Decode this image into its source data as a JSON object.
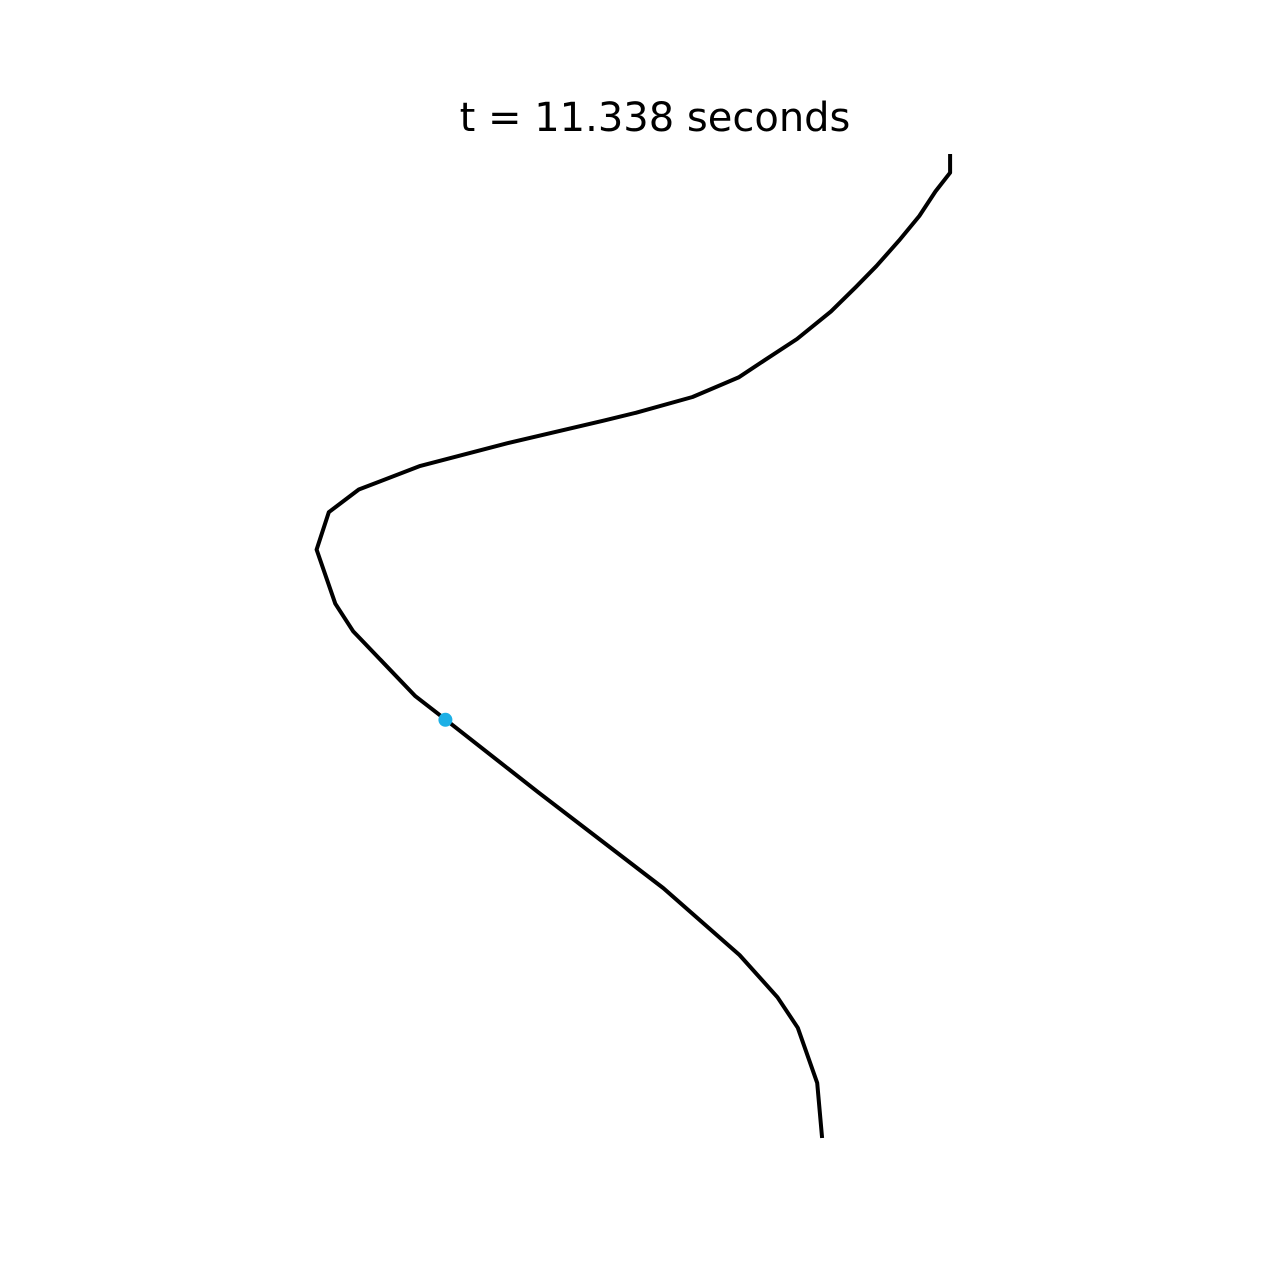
{
  "chart_data": {
    "type": "line",
    "title": "t = 11.338 seconds",
    "grid": false,
    "axes_visible": false,
    "series": [
      {
        "color": "#000000",
        "points": [
          [
            0.805,
            0.0
          ],
          [
            0.805,
            0.019
          ],
          [
            0.787,
            0.038
          ],
          [
            0.767,
            0.063
          ],
          [
            0.742,
            0.088
          ],
          [
            0.714,
            0.114
          ],
          [
            0.689,
            0.135
          ],
          [
            0.658,
            0.16
          ],
          [
            0.616,
            0.188
          ],
          [
            0.577,
            0.209
          ],
          [
            0.544,
            0.227
          ],
          [
            0.487,
            0.247
          ],
          [
            0.417,
            0.263
          ],
          [
            0.377,
            0.271
          ],
          [
            0.258,
            0.294
          ],
          [
            0.151,
            0.317
          ],
          [
            0.075,
            0.341
          ],
          [
            0.038,
            0.364
          ],
          [
            0.023,
            0.402
          ],
          [
            0.046,
            0.457
          ],
          [
            0.068,
            0.485
          ],
          [
            0.145,
            0.551
          ],
          [
            0.181,
            0.574
          ],
          [
            0.297,
            0.649
          ],
          [
            0.451,
            0.746
          ],
          [
            0.545,
            0.814
          ],
          [
            0.592,
            0.857
          ],
          [
            0.617,
            0.888
          ],
          [
            0.641,
            0.944
          ],
          [
            0.647,
            1.0
          ]
        ]
      }
    ],
    "marker": {
      "color": "#1cb0e6",
      "point": [
        0.182,
        0.575
      ]
    }
  }
}
